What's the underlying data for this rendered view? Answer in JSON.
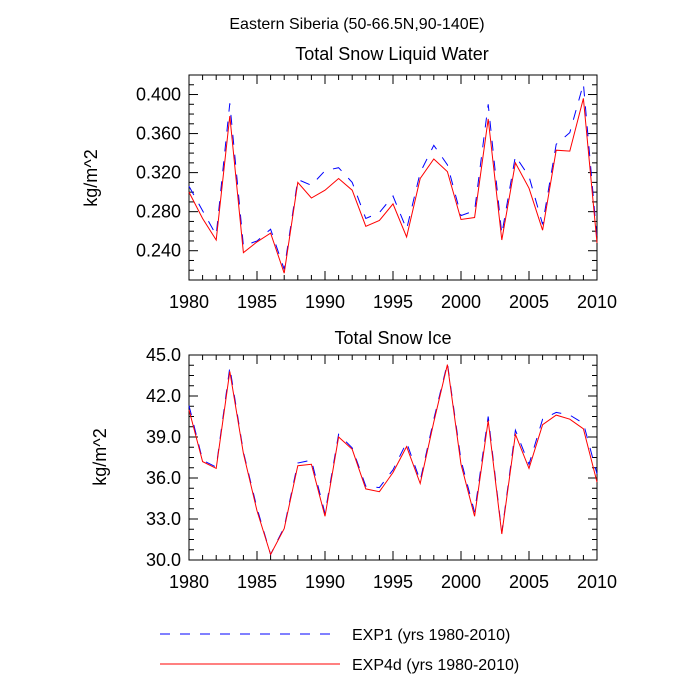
{
  "figure_title": "Eastern Siberia (50-66.5N,90-140E)",
  "colors": {
    "exp1": "#0000ff",
    "exp4d": "#ff0000",
    "axis": "#000000"
  },
  "legend": [
    {
      "label": "EXP1 (yrs 1980-2010)",
      "style": "dashed"
    },
    {
      "label": "EXP4d (yrs 1980-2010)",
      "style": "solid"
    }
  ],
  "chart_data": [
    {
      "type": "line",
      "title": "Total Snow Liquid Water",
      "xlabel": "",
      "ylabel": "kg/m^2",
      "xlim": [
        1980,
        2010
      ],
      "ylim": [
        0.21,
        0.42
      ],
      "x_ticks": [
        "1980",
        "1985",
        "1990",
        "1995",
        "2000",
        "2005",
        "2010"
      ],
      "y_ticks": [
        "0.240",
        "0.280",
        "0.320",
        "0.360",
        "0.400"
      ],
      "x": [
        1980,
        1981,
        1982,
        1983,
        1984,
        1985,
        1986,
        1987,
        1988,
        1989,
        1990,
        1991,
        1992,
        1993,
        1994,
        1995,
        1996,
        1997,
        1998,
        1999,
        2000,
        2001,
        2002,
        2003,
        2004,
        2005,
        2006,
        2007,
        2008,
        2009,
        2010
      ],
      "series": [
        {
          "name": "EXP1 (yrs 1980-2010)",
          "values": [
            0.306,
            0.281,
            0.256,
            0.391,
            0.245,
            0.25,
            0.262,
            0.221,
            0.313,
            0.307,
            0.322,
            0.325,
            0.31,
            0.273,
            0.279,
            0.296,
            0.262,
            0.32,
            0.348,
            0.328,
            0.276,
            0.281,
            0.39,
            0.257,
            0.337,
            0.316,
            0.267,
            0.349,
            0.361,
            0.411,
            0.252
          ]
        },
        {
          "name": "EXP4d (yrs 1980-2010)",
          "values": [
            0.3,
            0.273,
            0.251,
            0.378,
            0.238,
            0.249,
            0.258,
            0.217,
            0.31,
            0.294,
            0.302,
            0.314,
            0.302,
            0.265,
            0.271,
            0.288,
            0.254,
            0.314,
            0.334,
            0.321,
            0.272,
            0.274,
            0.375,
            0.251,
            0.33,
            0.304,
            0.261,
            0.343,
            0.342,
            0.396,
            0.248
          ]
        }
      ]
    },
    {
      "type": "line",
      "title": "Total Snow Ice",
      "xlabel": "",
      "ylabel": "kg/m^2",
      "xlim": [
        1980,
        2010
      ],
      "ylim": [
        30.0,
        45.0
      ],
      "x_ticks": [
        "1980",
        "1985",
        "1990",
        "1995",
        "2000",
        "2005",
        "2010"
      ],
      "y_ticks": [
        "30.0",
        "33.0",
        "36.0",
        "39.0",
        "42.0",
        "45.0"
      ],
      "x": [
        1980,
        1981,
        1982,
        1983,
        1984,
        1985,
        1986,
        1987,
        1988,
        1989,
        1990,
        1991,
        1992,
        1993,
        1994,
        1995,
        1996,
        1997,
        1998,
        1999,
        2000,
        2001,
        2002,
        2003,
        2004,
        2005,
        2006,
        2007,
        2008,
        2009,
        2010
      ],
      "series": [
        {
          "name": "EXP1 (yrs 1980-2010)",
          "values": [
            41.3,
            37.3,
            36.8,
            44.1,
            37.9,
            33.8,
            30.4,
            32.4,
            37.1,
            37.3,
            33.4,
            39.2,
            38.2,
            35.4,
            35.3,
            36.6,
            38.6,
            35.8,
            40.3,
            44.4,
            37.3,
            33.5,
            40.5,
            32.0,
            39.5,
            37.0,
            40.3,
            40.8,
            40.6,
            40.0,
            36.3
          ]
        },
        {
          "name": "EXP4d (yrs 1980-2010)",
          "values": [
            41.0,
            37.2,
            36.7,
            43.8,
            37.8,
            33.6,
            30.4,
            32.3,
            36.9,
            37.0,
            33.2,
            39.0,
            38.1,
            35.2,
            35.0,
            36.4,
            38.3,
            35.6,
            40.1,
            44.3,
            37.0,
            33.2,
            40.2,
            31.9,
            39.2,
            36.7,
            39.9,
            40.6,
            40.3,
            39.6,
            35.7
          ]
        }
      ]
    }
  ]
}
